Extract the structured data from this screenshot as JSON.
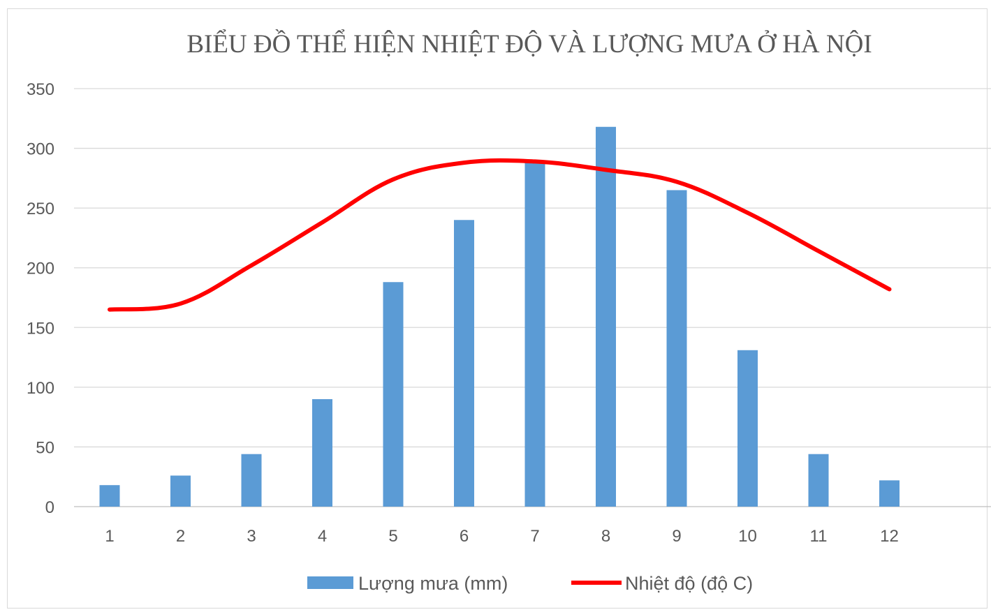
{
  "chart_data": {
    "type": "bar",
    "title": "BIỂU ĐỒ  THỂ HIỆN NHIỆT ĐỘ VÀ LƯỢNG MƯA Ở HÀ NỘI",
    "xlabel": "",
    "ylabel": "",
    "categories": [
      "1",
      "2",
      "3",
      "4",
      "5",
      "6",
      "7",
      "8",
      "9",
      "10",
      "11",
      "12"
    ],
    "ylim": [
      0,
      350
    ],
    "yticks": [
      "0",
      "50",
      "100",
      "150",
      "200",
      "250",
      "300",
      "350"
    ],
    "grid": true,
    "legend_position": "bottom",
    "series": [
      {
        "name": "Lượng mưa (mm)",
        "type": "bar",
        "color": "#5b9bd5",
        "values": [
          18,
          26,
          44,
          90,
          188,
          240,
          288,
          318,
          265,
          131,
          44,
          22
        ]
      },
      {
        "name": "Nhiệt độ (độ C)",
        "type": "line",
        "color": "#ff0000",
        "values": [
          165,
          170,
          202,
          238,
          274,
          288,
          289,
          282,
          272,
          246,
          214,
          182
        ]
      }
    ]
  }
}
